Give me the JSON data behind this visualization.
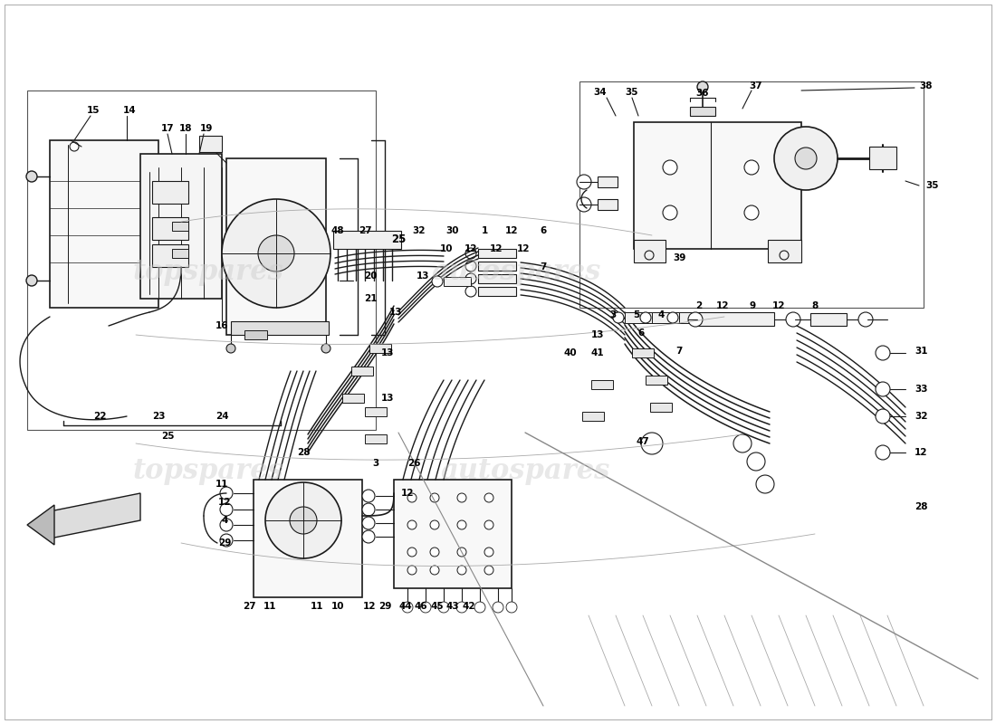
{
  "bg_color": "#ffffff",
  "line_color": "#1a1a1a",
  "watermark1": "topspares",
  "watermark2": "autospares",
  "wm_color": "#cccccc",
  "wm_alpha": 0.45,
  "figsize": [
    11.0,
    8.0
  ],
  "dpi": 100,
  "border_color": "#cccccc",
  "label_fontsize": 7.5,
  "bold_fontsize": 8.5
}
